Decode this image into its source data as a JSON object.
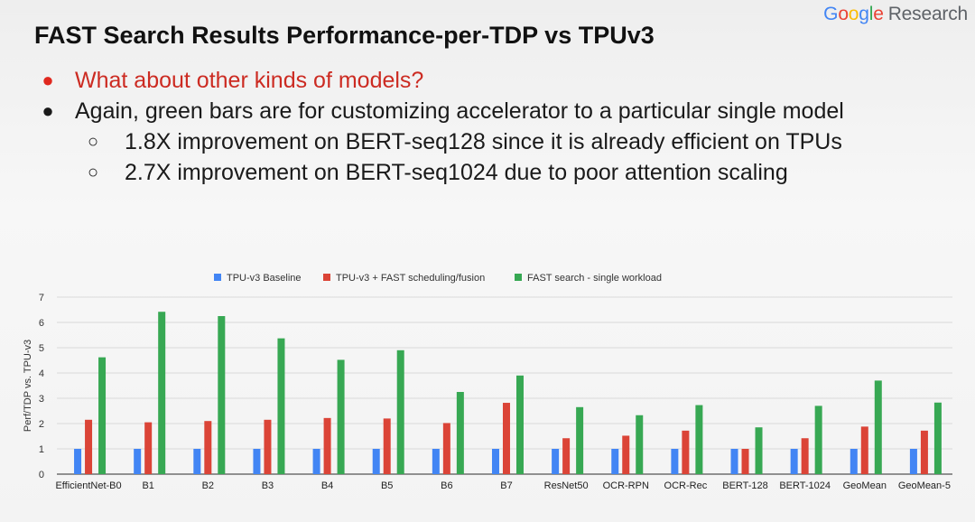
{
  "logo": {
    "part1": "G",
    "part2": "o",
    "part3": "o",
    "part4": "g",
    "part5": "l",
    "part6": "e",
    "suffix": "Research"
  },
  "title": "FAST Search Results Performance-per-TDP vs TPUv3",
  "bullets": [
    {
      "marker": "●",
      "text": "What about other kinds of models?"
    },
    {
      "marker": "●",
      "text": "Again, green bars are for customizing accelerator to a particular single model"
    }
  ],
  "sub_bullets": [
    {
      "marker": "○",
      "text": "1.8X improvement on BERT-seq128 since it is already efficient on TPUs"
    },
    {
      "marker": "○",
      "text": "2.7X improvement on BERT-seq1024 due to poor attention scaling"
    }
  ],
  "colors": {
    "baseline": "#4285f4",
    "fast_sched": "#db4437",
    "fast_search": "#37a853",
    "accent_red": "#cc2b22"
  },
  "chart_data": {
    "type": "bar",
    "title": "",
    "xlabel": "",
    "ylabel": "Perf/TDP vs. TPU-v3",
    "ylim": [
      0,
      7
    ],
    "yticks": [
      0,
      1,
      2,
      3,
      4,
      5,
      6,
      7
    ],
    "grid": true,
    "legend_position": "top",
    "categories": [
      "EfficientNet-B0",
      "B1",
      "B2",
      "B3",
      "B4",
      "B5",
      "B6",
      "B7",
      "ResNet50",
      "OCR-RPN",
      "OCR-Rec",
      "BERT-128",
      "BERT-1024",
      "GeoMean",
      "GeoMean-5"
    ],
    "series": [
      {
        "name": "TPU-v3 Baseline",
        "color": "#4285f4",
        "values": [
          1,
          1,
          1,
          1,
          1,
          1,
          1,
          1,
          1,
          1,
          1,
          1,
          1,
          1,
          1
        ]
      },
      {
        "name": "TPU-v3 + FAST scheduling/fusion",
        "color": "#db4437",
        "values": [
          2.15,
          2.05,
          2.1,
          2.15,
          2.22,
          2.2,
          2.02,
          2.82,
          1.42,
          1.52,
          1.72,
          1.0,
          1.42,
          1.88,
          1.72
        ]
      },
      {
        "name": "FAST search - single workload",
        "color": "#37a853",
        "values": [
          4.62,
          6.42,
          6.25,
          5.37,
          4.52,
          4.9,
          3.25,
          3.9,
          2.65,
          2.33,
          2.73,
          1.85,
          2.7,
          3.7,
          2.83
        ]
      }
    ]
  }
}
